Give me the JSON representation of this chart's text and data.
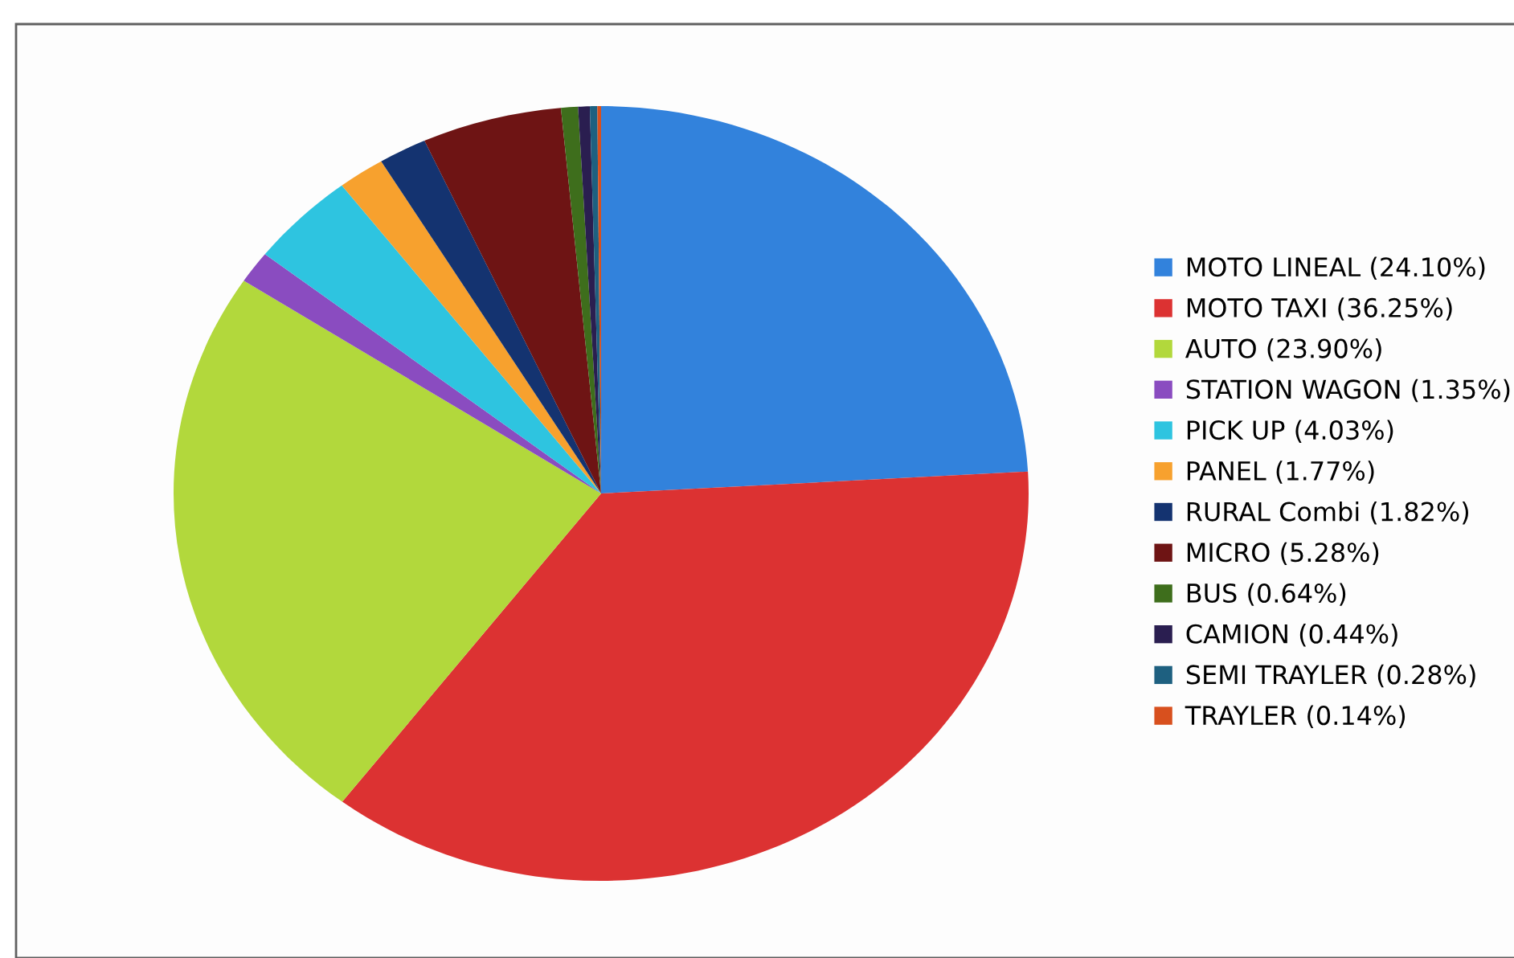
{
  "chart_data": {
    "type": "pie",
    "categories": [
      "MOTO LINEAL (24.10%)",
      "MOTO TAXI (36.25%)",
      "AUTO (23.90%)",
      "STATION WAGON (1.35%)",
      "PICK UP (4.03%)",
      "PANEL (1.77%)",
      "RURAL Combi (1.82%)",
      "MICRO (5.28%)",
      "BUS (0.64%)",
      "CAMION (0.44%)",
      "SEMI TRAYLER (0.28%)",
      "TRAYLER (0.14%)"
    ],
    "values": [
      24.1,
      36.25,
      23.9,
      1.35,
      4.03,
      1.77,
      1.82,
      5.28,
      0.64,
      0.44,
      0.28,
      0.14
    ],
    "colors": [
      "#3282dc",
      "#dc3232",
      "#b2d83c",
      "#8a4cc0",
      "#2ec4e0",
      "#f7a12e",
      "#143370",
      "#6e1414",
      "#3e6e1c",
      "#2a1e50",
      "#1e6080",
      "#d8501e"
    ],
    "legend": "right"
  }
}
